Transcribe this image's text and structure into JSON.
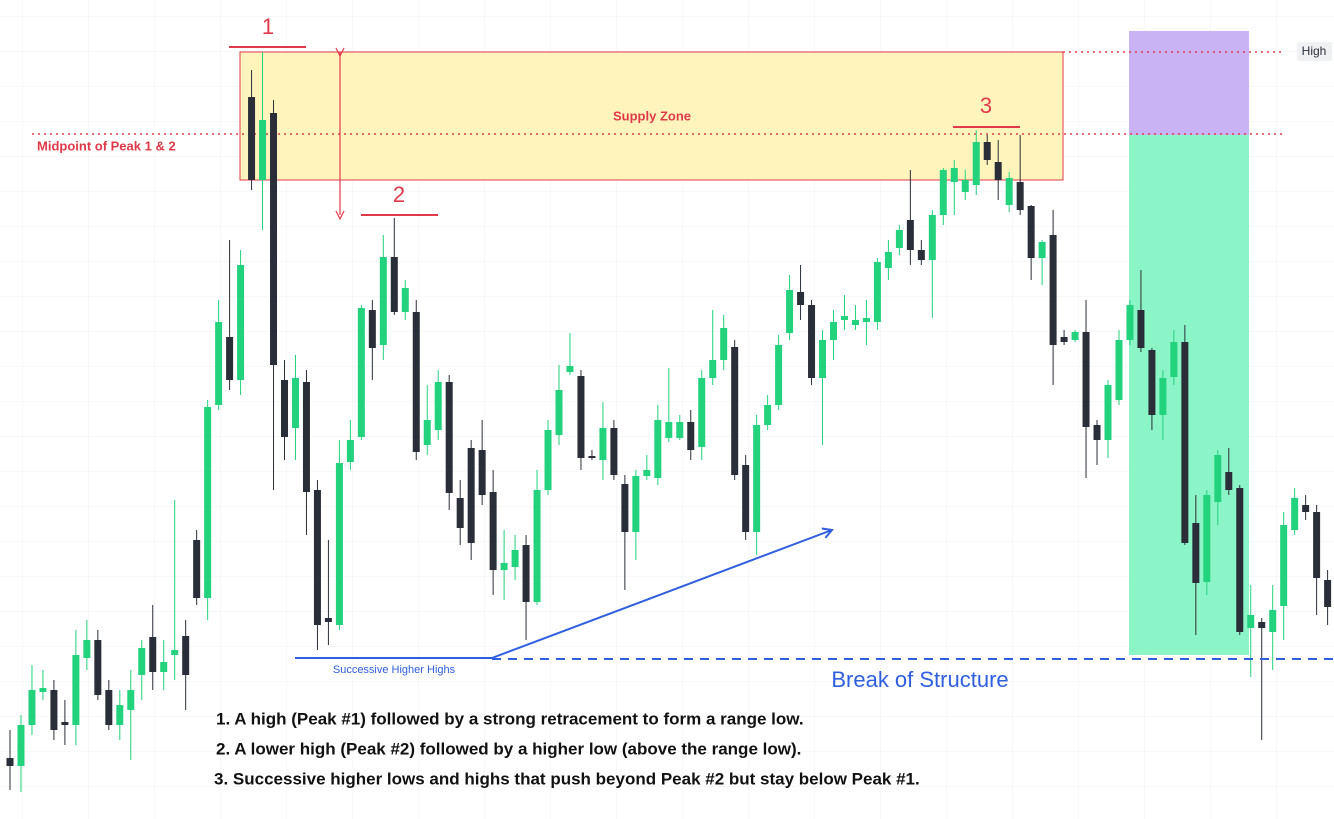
{
  "chart_data": {
    "type": "candlestick",
    "up_color": "#22d27c",
    "down_color": "#2a2e39",
    "grid": true,
    "ylim": [
      0,
      819
    ],
    "open": [
      61,
      53,
      94,
      127,
      129,
      97,
      94,
      161,
      179,
      129,
      94,
      109,
      144,
      182,
      147,
      164,
      183,
      279,
      221,
      414,
      482,
      439,
      722,
      639,
      706,
      439,
      391,
      437,
      329,
      201,
      194,
      357,
      382,
      509,
      474,
      562,
      507,
      507,
      374,
      389,
      437,
      321,
      371,
      369,
      327,
      249,
      252,
      274,
      217,
      329,
      384,
      447,
      443,
      363,
      359,
      391,
      335,
      287,
      343,
      341,
      381,
      381,
      397,
      372,
      441,
      459,
      472,
      354,
      287,
      394,
      414,
      486,
      527,
      514,
      441,
      479,
      499,
      494,
      497,
      497,
      551,
      571,
      599,
      569,
      559,
      604,
      637,
      627,
      634,
      677,
      657,
      614,
      637,
      613,
      561,
      584,
      482,
      479,
      487,
      394,
      379,
      419,
      479,
      509,
      469,
      404,
      442,
      477,
      296,
      237,
      317,
      347,
      331,
      191,
      197,
      187,
      213,
      289,
      314,
      307,
      239
    ],
    "high": [
      89,
      104,
      154,
      149,
      139,
      119,
      189,
      199,
      189,
      139,
      129,
      149,
      179,
      214,
      179,
      319,
      199,
      289,
      419,
      519,
      579,
      569,
      749,
      767,
      719,
      459,
      464,
      449,
      339,
      279,
      379,
      399,
      514,
      519,
      584,
      601,
      539,
      519,
      434,
      449,
      444,
      339,
      379,
      399,
      349,
      289,
      284,
      284,
      349,
      399,
      454,
      486,
      449,
      369,
      417,
      399,
      344,
      349,
      364,
      414,
      451,
      404,
      409,
      449,
      509,
      504,
      479,
      364,
      404,
      424,
      484,
      544,
      554,
      519,
      489,
      509,
      524,
      514,
      519,
      561,
      579,
      594,
      649,
      579,
      609,
      651,
      659,
      649,
      689,
      684,
      679,
      647,
      684,
      614,
      579,
      609,
      489,
      489,
      519,
      399,
      439,
      489,
      519,
      549,
      471,
      449,
      489,
      494,
      324,
      329,
      369,
      371,
      334,
      234,
      201,
      234,
      307,
      331,
      324,
      314,
      249
    ],
    "low": [
      29,
      27,
      84,
      119,
      79,
      74,
      74,
      149,
      119,
      89,
      79,
      59,
      119,
      129,
      129,
      139,
      109,
      214,
      199,
      409,
      429,
      424,
      629,
      589,
      329,
      359,
      359,
      284,
      169,
      174,
      189,
      349,
      379,
      439,
      459,
      504,
      499,
      359,
      364,
      379,
      309,
      274,
      259,
      314,
      224,
      219,
      239,
      179,
      214,
      324,
      374,
      444,
      349,
      359,
      339,
      339,
      229,
      259,
      339,
      334,
      377,
      379,
      359,
      359,
      434,
      449,
      339,
      279,
      264,
      389,
      409,
      479,
      499,
      434,
      374,
      459,
      489,
      489,
      474,
      489,
      539,
      564,
      554,
      554,
      501,
      594,
      604,
      619,
      624,
      654,
      619,
      607,
      604,
      539,
      534,
      434,
      474,
      477,
      341,
      354,
      361,
      414,
      474,
      467,
      389,
      379,
      434,
      274,
      184,
      224,
      294,
      324,
      184,
      142,
      79,
      149,
      179,
      284,
      299,
      204,
      194
    ],
    "close": [
      53,
      94,
      129,
      131,
      89,
      94,
      164,
      179,
      124,
      94,
      114,
      129,
      171,
      147,
      157,
      169,
      144,
      221,
      412,
      497,
      439,
      554,
      639,
      699,
      454,
      382,
      441,
      327,
      194,
      197,
      356,
      379,
      511,
      471,
      562,
      507,
      531,
      367,
      399,
      437,
      326,
      291,
      276,
      324,
      249,
      256,
      269,
      217,
      329,
      389,
      429,
      453,
      361,
      361,
      391,
      344,
      287,
      343,
      349,
      399,
      397,
      397,
      369,
      441,
      459,
      491,
      344,
      287,
      394,
      414,
      474,
      529,
      514,
      441,
      479,
      497,
      503,
      499,
      501,
      557,
      567,
      589,
      569,
      559,
      604,
      649,
      651,
      639,
      677,
      659,
      639,
      641,
      609,
      561,
      577,
      474,
      477,
      487,
      392,
      379,
      434,
      479,
      514,
      471,
      404,
      441,
      477,
      276,
      236,
      324,
      364,
      329,
      187,
      204,
      191,
      209,
      294,
      321,
      307,
      241,
      212
    ],
    "annotations": [
      "1",
      "2",
      "3",
      "Supply Zone",
      "Midpoint of Peak 1 & 2",
      "High",
      "Successive Higher Highs",
      "Break of Structure"
    ],
    "notes": [
      "1. A high (Peak #1) followed by a strong retracement to form a range low.",
      "2. A lower high (Peak #2) followed by a higher low (above the range low).",
      "3. Successive higher lows and highs that push beyond Peak #2 but stay below Peak #1."
    ]
  }
}
